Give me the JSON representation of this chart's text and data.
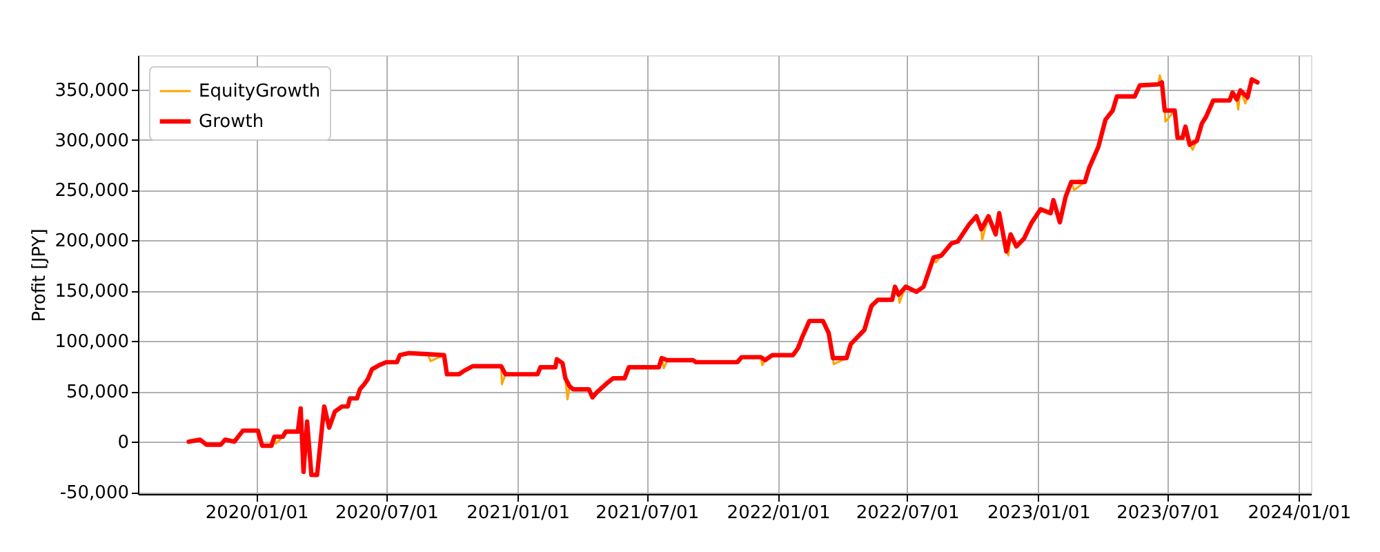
{
  "chart_data": {
    "type": "line",
    "ylabel": "Profit [JPY]",
    "xlim": [
      "2019-07-19",
      "2024-01-18"
    ],
    "xticks": [
      {
        "value": "2020-01-01",
        "label": "2020/01/01"
      },
      {
        "value": "2020-07-01",
        "label": "2020/07/01"
      },
      {
        "value": "2021-01-01",
        "label": "2021/01/01"
      },
      {
        "value": "2021-07-01",
        "label": "2021/07/01"
      },
      {
        "value": "2022-01-01",
        "label": "2022/01/01"
      },
      {
        "value": "2022-07-01",
        "label": "2022/07/01"
      },
      {
        "value": "2023-01-01",
        "label": "2023/01/01"
      },
      {
        "value": "2023-07-01",
        "label": "2023/07/01"
      },
      {
        "value": "2024-01-01",
        "label": "2024/01/01"
      }
    ],
    "ylim": [
      -52000,
      384000
    ],
    "yticks": [
      {
        "value": -50000,
        "label": "-50,000"
      },
      {
        "value": 0,
        "label": "0"
      },
      {
        "value": 50000,
        "label": "50,000"
      },
      {
        "value": 100000,
        "label": "100,000"
      },
      {
        "value": 150000,
        "label": "150,000"
      },
      {
        "value": 200000,
        "label": "200,000"
      },
      {
        "value": 250000,
        "label": "250,000"
      },
      {
        "value": 300000,
        "label": "300,000"
      },
      {
        "value": 350000,
        "label": "350,000"
      }
    ],
    "grid": true,
    "legend": "top left",
    "marker": "none",
    "line_style": "solid",
    "series": [
      {
        "name": "EquityGrowth",
        "color": "#ffa500",
        "x": [
          "2020-01-26",
          "2020-01-28",
          "2020-02-07",
          "2020-05-01",
          "2020-08-28",
          "2020-09-01",
          "2020-09-20",
          "2020-11-01",
          "2020-12-09",
          "2020-12-10",
          "2020-12-15",
          "2021-02-01",
          "2021-03-09",
          "2021-03-12",
          "2021-03-15",
          "2021-03-25",
          "2021-07-22",
          "2021-07-25",
          "2021-07-30",
          "2021-09-01",
          "2021-12-08",
          "2021-12-10",
          "2021-12-14",
          "2022-02-01",
          "2022-03-19",
          "2022-03-20",
          "2022-04-07",
          "2022-04-20",
          "2022-06-19",
          "2022-06-20",
          "2022-06-29",
          "2022-07-20",
          "2022-08-07",
          "2022-08-10",
          "2022-08-18",
          "2022-09-20",
          "2022-10-13",
          "2022-10-14",
          "2022-10-23",
          "2022-11-01",
          "2022-11-17",
          "2022-11-20",
          "2022-11-23",
          "2023-01-10",
          "2023-02-16",
          "2023-02-20",
          "2023-03-07",
          "2023-05-01",
          "2023-06-18",
          "2023-06-20",
          "2023-06-23",
          "2023-06-25",
          "2023-06-27",
          "2023-06-28",
          "2023-07-11",
          "2023-07-20",
          "2023-08-01",
          "2023-08-05",
          "2023-08-11",
          "2023-09-10",
          "2023-10-06",
          "2023-10-08",
          "2023-10-11",
          "2023-10-18",
          "2023-10-21"
        ],
        "values": [
          5000,
          -2000,
          5000,
          null,
          87000,
          80000,
          86000,
          null,
          75000,
          57000,
          67000,
          null,
          63000,
          42000,
          55000,
          null,
          83000,
          73000,
          81000,
          null,
          84000,
          76000,
          81000,
          null,
          83000,
          77000,
          83000,
          null,
          146000,
          138000,
          154000,
          null,
          183000,
          178000,
          185000,
          null,
          211000,
          200000,
          224000,
          null,
          189000,
          185000,
          206000,
          null,
          258000,
          250000,
          258000,
          null,
          355000,
          364000,
          357000,
          null,
          329000,
          318000,
          329000,
          null,
          295000,
          290000,
          299000,
          null,
          340000,
          330000,
          349000,
          336000,
          342000
        ]
      },
      {
        "name": "Growth",
        "color": "#ff0000",
        "x": [
          "2019-09-28",
          "2019-10-14",
          "2019-10-23",
          "2019-11-12",
          "2019-11-18",
          "2019-12-01",
          "2019-12-13",
          "2020-01-03",
          "2020-01-09",
          "2020-01-22",
          "2020-01-26",
          "2020-02-07",
          "2020-02-11",
          "2020-02-28",
          "2020-03-03",
          "2020-03-07",
          "2020-03-12",
          "2020-03-18",
          "2020-03-26",
          "2020-04-05",
          "2020-04-12",
          "2020-04-20",
          "2020-04-30",
          "2020-05-08",
          "2020-05-11",
          "2020-05-21",
          "2020-05-25",
          "2020-05-31",
          "2020-06-05",
          "2020-06-11",
          "2020-06-21",
          "2020-07-01",
          "2020-07-16",
          "2020-07-20",
          "2020-08-01",
          "2020-08-28",
          "2020-09-20",
          "2020-09-24",
          "2020-10-11",
          "2020-10-17",
          "2020-10-30",
          "2020-12-09",
          "2020-12-15",
          "2021-01-29",
          "2021-02-02",
          "2021-02-23",
          "2021-02-25",
          "2021-03-05",
          "2021-03-09",
          "2021-03-15",
          "2021-03-20",
          "2021-04-11",
          "2021-04-16",
          "2021-04-22",
          "2021-05-06",
          "2021-05-15",
          "2021-05-31",
          "2021-06-06",
          "2021-07-18",
          "2021-07-22",
          "2021-07-30",
          "2021-09-04",
          "2021-09-08",
          "2021-11-05",
          "2021-11-11",
          "2021-12-08",
          "2021-12-14",
          "2021-12-24",
          "2022-01-22",
          "2022-01-29",
          "2022-02-04",
          "2022-02-14",
          "2022-03-05",
          "2022-03-13",
          "2022-03-19",
          "2022-04-07",
          "2022-04-13",
          "2022-05-02",
          "2022-05-12",
          "2022-05-21",
          "2022-06-10",
          "2022-06-14",
          "2022-06-19",
          "2022-06-29",
          "2022-07-14",
          "2022-07-24",
          "2022-08-07",
          "2022-08-18",
          "2022-09-01",
          "2022-09-10",
          "2022-09-26",
          "2022-10-06",
          "2022-10-13",
          "2022-10-23",
          "2022-11-02",
          "2022-11-07",
          "2022-11-17",
          "2022-11-23",
          "2022-12-01",
          "2022-12-12",
          "2022-12-22",
          "2023-01-04",
          "2023-01-18",
          "2023-01-22",
          "2023-01-31",
          "2023-02-08",
          "2023-02-16",
          "2023-03-07",
          "2023-03-13",
          "2023-03-26",
          "2023-04-05",
          "2023-04-15",
          "2023-04-21",
          "2023-05-16",
          "2023-05-23",
          "2023-06-18",
          "2023-06-23",
          "2023-06-27",
          "2023-07-11",
          "2023-07-15",
          "2023-07-22",
          "2023-07-26",
          "2023-08-01",
          "2023-08-11",
          "2023-08-18",
          "2023-08-24",
          "2023-09-03",
          "2023-09-26",
          "2023-09-30",
          "2023-10-06",
          "2023-10-11",
          "2023-10-21",
          "2023-10-27",
          "2023-11-04"
        ],
        "values": [
          0,
          2000,
          -3000,
          -3000,
          2000,
          0,
          11000,
          11000,
          -4000,
          -4000,
          5000,
          5000,
          10000,
          10000,
          33000,
          -30000,
          20000,
          -33000,
          -33000,
          35000,
          14000,
          30000,
          35000,
          35000,
          43000,
          43000,
          52000,
          57000,
          62000,
          72000,
          76000,
          79000,
          79000,
          86000,
          88000,
          87000,
          86000,
          67000,
          67000,
          70000,
          75000,
          75000,
          67000,
          67000,
          74000,
          74000,
          82000,
          78000,
          63000,
          55000,
          52000,
          52000,
          44000,
          49000,
          58000,
          63000,
          63000,
          74000,
          74000,
          83000,
          81000,
          81000,
          79000,
          79000,
          84000,
          84000,
          81000,
          86000,
          86000,
          93000,
          104000,
          120000,
          120000,
          108000,
          83000,
          83000,
          97000,
          111000,
          135000,
          141000,
          141000,
          154000,
          146000,
          154000,
          149000,
          154000,
          183000,
          185000,
          197000,
          199000,
          216000,
          224000,
          211000,
          224000,
          206000,
          227000,
          189000,
          206000,
          194000,
          202000,
          217000,
          231000,
          227000,
          240000,
          218000,
          243000,
          258000,
          258000,
          272000,
          293000,
          320000,
          329000,
          343000,
          343000,
          354000,
          355000,
          357000,
          329000,
          329000,
          302000,
          302000,
          313000,
          295000,
          299000,
          316000,
          323000,
          339000,
          339000,
          347000,
          340000,
          349000,
          342000,
          360000,
          357000
        ]
      }
    ]
  }
}
